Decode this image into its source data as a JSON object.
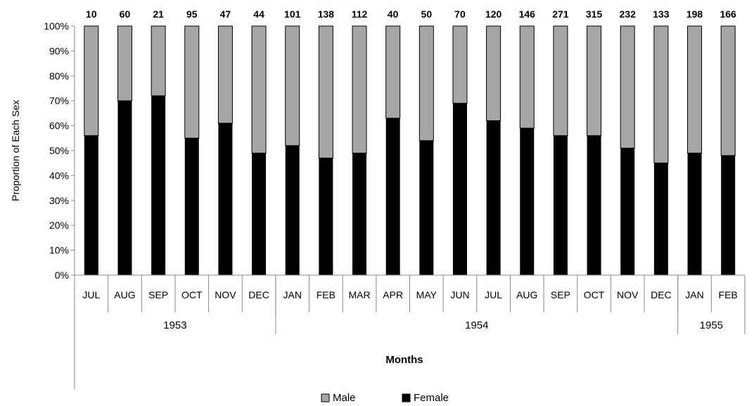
{
  "chart_data": {
    "type": "bar",
    "stacked": true,
    "normalized": true,
    "xlabel": "Months",
    "ylabel": "Proportion of Each Sex",
    "ylim": [
      0,
      100
    ],
    "yticks": [
      "0%",
      "10%",
      "20%",
      "30%",
      "40%",
      "50%",
      "60%",
      "70%",
      "80%",
      "90%",
      "100%"
    ],
    "categories": [
      "JUL",
      "AUG",
      "SEP",
      "OCT",
      "NOV",
      "DEC",
      "JAN",
      "FEB",
      "MAR",
      "APR",
      "MAY",
      "JUN",
      "JUL",
      "AUG",
      "SEP",
      "OCT",
      "NOV",
      "DEC",
      "JAN",
      "FEB"
    ],
    "groups": [
      {
        "label": "1953",
        "count": 6
      },
      {
        "label": "1954",
        "count": 12
      },
      {
        "label": "1955",
        "count": 2
      }
    ],
    "counts": [
      "10",
      "60",
      "21",
      "95",
      "47",
      "44",
      "101",
      "138",
      "112",
      "40",
      "50",
      "70",
      "120",
      "146",
      "271",
      "315",
      "232",
      "133",
      "198",
      "166"
    ],
    "series": [
      {
        "name": "Female",
        "color": "#000000",
        "values": [
          56,
          70,
          72,
          55,
          61,
          49,
          52,
          47,
          49,
          63,
          54,
          69,
          62,
          59,
          56,
          56,
          51,
          45,
          49,
          48
        ]
      },
      {
        "name": "Male",
        "color": "#a6a6a6",
        "values": [
          44,
          30,
          28,
          45,
          39,
          51,
          48,
          53,
          51,
          37,
          46,
          31,
          38,
          41,
          44,
          44,
          49,
          55,
          51,
          52
        ]
      }
    ],
    "legend": {
      "position": "bottom",
      "order": [
        "Male",
        "Female"
      ]
    },
    "grid": false
  }
}
